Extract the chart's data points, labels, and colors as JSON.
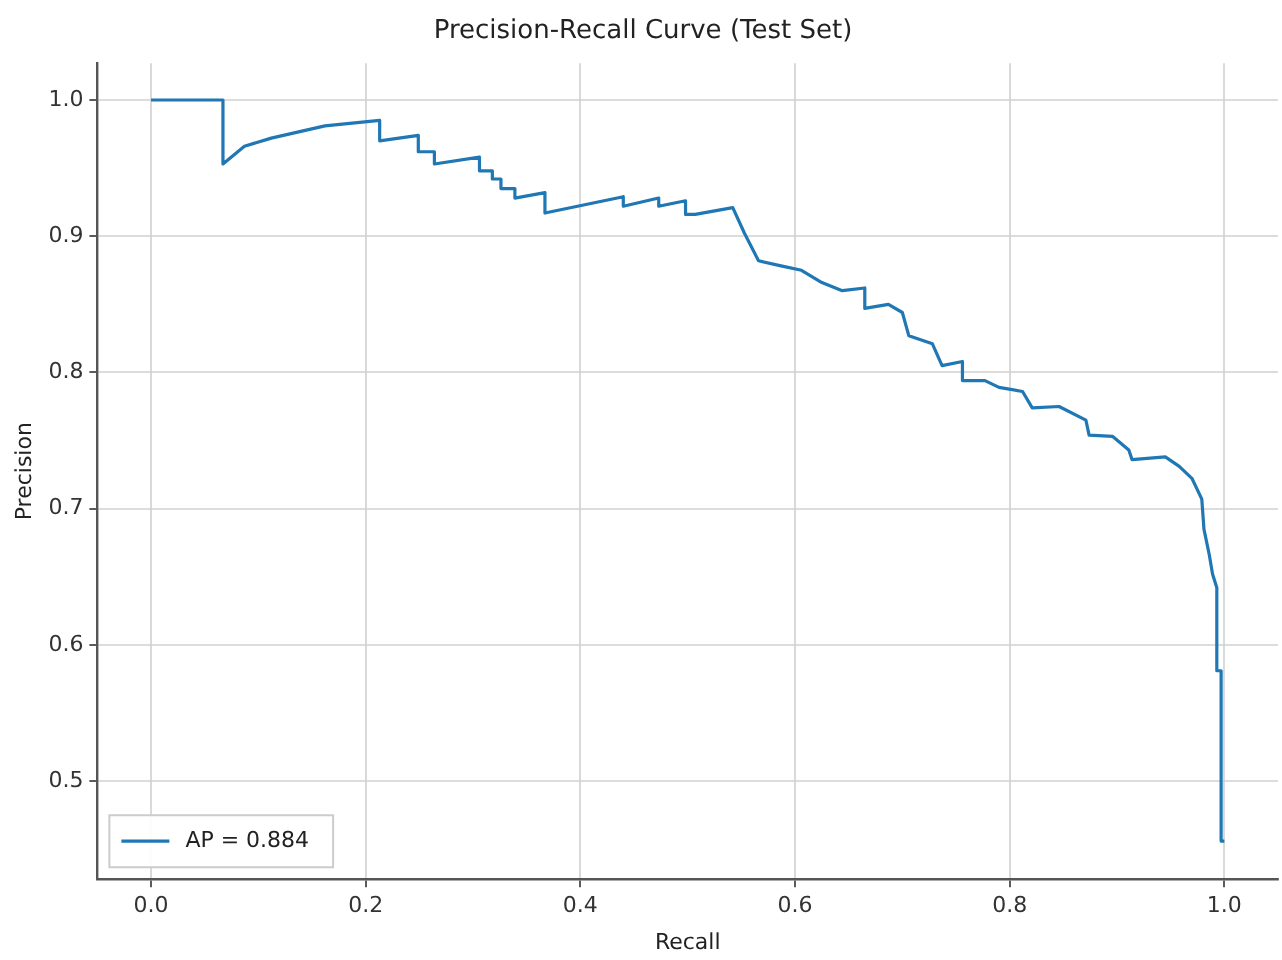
{
  "chart_data": {
    "type": "line",
    "title": "Precision-Recall Curve (Test Set)",
    "xlabel": "Recall",
    "ylabel": "Precision",
    "xlim": [
      -0.05,
      1.05
    ],
    "ylim": [
      0.428,
      1.027
    ],
    "xticks": [
      {
        "value": 0,
        "label": "0.0"
      },
      {
        "value": 0.2,
        "label": "0.2"
      },
      {
        "value": 0.4,
        "label": "0.4"
      },
      {
        "value": 0.6,
        "label": "0.6"
      },
      {
        "value": 0.8,
        "label": "0.8"
      },
      {
        "value": 1,
        "label": "1.0"
      }
    ],
    "yticks": [
      {
        "value": 0.5,
        "label": "0.5"
      },
      {
        "value": 0.6,
        "label": "0.6"
      },
      {
        "value": 0.7,
        "label": "0.7"
      },
      {
        "value": 0.8,
        "label": "0.8"
      },
      {
        "value": 0.9,
        "label": "0.9"
      },
      {
        "value": 1,
        "label": "1.0"
      }
    ],
    "grid": true,
    "legend": "bottom left",
    "marker": "none",
    "line_style": "solid",
    "series": [
      {
        "name": "AP = 0.884",
        "color": "#1f77b4",
        "x": [
          0,
          0.067,
          0.067,
          0.087,
          0.112,
          0.162,
          0.213,
          0.213,
          0.249,
          0.249,
          0.264,
          0.264,
          0.306,
          0.306,
          0.318,
          0.318,
          0.326,
          0.326,
          0.339,
          0.339,
          0.367,
          0.367,
          0.44,
          0.44,
          0.473,
          0.473,
          0.498,
          0.498,
          0.507,
          0.542,
          0.553,
          0.566,
          0.588,
          0.606,
          0.625,
          0.644,
          0.665,
          0.665,
          0.687,
          0.7,
          0.706,
          0.728,
          0.737,
          0.756,
          0.756,
          0.777,
          0.79,
          0.812,
          0.821,
          0.846,
          0.871,
          0.874,
          0.896,
          0.911,
          0.914,
          0.945,
          0.958,
          0.97,
          0.979,
          0.981,
          0.986,
          0.989,
          0.993,
          0.993,
          0.997,
          0.997,
          1.0
        ],
        "values": [
          1.0,
          1.0,
          0.953,
          0.966,
          0.972,
          0.981,
          0.985,
          0.97,
          0.974,
          0.962,
          0.962,
          0.953,
          0.958,
          0.948,
          0.948,
          0.942,
          0.942,
          0.935,
          0.935,
          0.928,
          0.932,
          0.917,
          0.929,
          0.922,
          0.928,
          0.922,
          0.926,
          0.916,
          0.916,
          0.921,
          0.902,
          0.882,
          0.878,
          0.875,
          0.866,
          0.86,
          0.862,
          0.847,
          0.85,
          0.844,
          0.827,
          0.821,
          0.805,
          0.808,
          0.794,
          0.794,
          0.789,
          0.786,
          0.774,
          0.775,
          0.765,
          0.754,
          0.753,
          0.743,
          0.736,
          0.738,
          0.731,
          0.722,
          0.707,
          0.685,
          0.666,
          0.652,
          0.642,
          0.581,
          0.581,
          0.456,
          0.456
        ]
      }
    ]
  }
}
